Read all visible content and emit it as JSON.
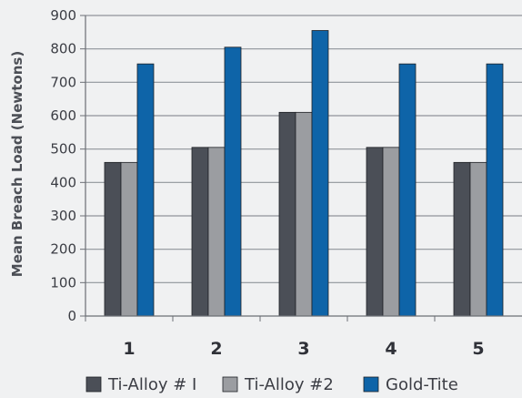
{
  "colors": {
    "background": "#f0f1f2",
    "axis": "#6b6f75",
    "gridline": "#8f949a",
    "text": "#3b3d44"
  },
  "chart_data": {
    "type": "bar",
    "title": "",
    "xlabel": "",
    "ylabel": "Mean Breach Load (Newtons)",
    "categories": [
      "1",
      "2",
      "3",
      "4",
      "5"
    ],
    "ylim": [
      0,
      900
    ],
    "yticks": [
      0,
      100,
      200,
      300,
      400,
      500,
      600,
      700,
      800,
      900
    ],
    "grid": "horizontal",
    "legend_position": "bottom",
    "series": [
      {
        "name": "Ti-Alloy # I",
        "color": "#4b4f57",
        "values": [
          460,
          505,
          610,
          505,
          460
        ]
      },
      {
        "name": "Ti-Alloy #2",
        "color": "#9b9da1",
        "values": [
          460,
          505,
          610,
          505,
          460
        ]
      },
      {
        "name": "Gold-Tite",
        "color": "#0e64a8",
        "values": [
          755,
          805,
          855,
          755,
          755
        ]
      }
    ]
  }
}
